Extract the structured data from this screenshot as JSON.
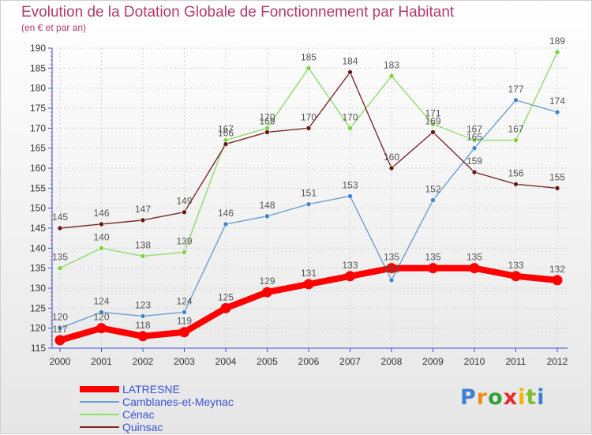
{
  "header": {
    "title": "Evolution de la Dotation Globale de Fonctionnement par Habitant",
    "subtitle": "(en € et par an)"
  },
  "logo": {
    "text": "Proxiti"
  },
  "colors": {
    "title": "#b13a6d",
    "axis": "#3a52d6",
    "grid": "#d2d2d2",
    "label": "#555555"
  },
  "chart_data": {
    "type": "line",
    "title": "Evolution de la Dotation Globale de Fonctionnement par Habitant",
    "subtitle": "(en € et par an)",
    "xlabel": "",
    "ylabel": "",
    "x": [
      "2000",
      "2001",
      "2002",
      "2003",
      "2004",
      "2005",
      "2006",
      "2007",
      "2008",
      "2009",
      "2010",
      "2011",
      "2012"
    ],
    "ylim": [
      115,
      190
    ],
    "yticks": [
      115,
      120,
      125,
      130,
      135,
      140,
      145,
      150,
      155,
      160,
      165,
      170,
      175,
      180,
      185,
      190
    ],
    "grid": true,
    "legend_position": "bottom-left",
    "series": [
      {
        "name": "LATRESNE",
        "color": "#ff0000",
        "marker": "#ff0000",
        "width": "thick",
        "values": [
          117,
          120,
          118,
          119,
          125,
          129,
          131,
          133,
          135,
          135,
          135,
          133,
          132
        ]
      },
      {
        "name": "Camblanes-et-Meynac",
        "color": "#6a9fd0",
        "marker": "#3c86cc",
        "width": "thin",
        "values": [
          120,
          124,
          123,
          124,
          146,
          148,
          151,
          153,
          132,
          152,
          165,
          177,
          174
        ]
      },
      {
        "name": "Cénac",
        "color": "#90dc6c",
        "marker": "#7ad23e",
        "width": "thin",
        "values": [
          135,
          140,
          138,
          139,
          167,
          170,
          185,
          170,
          183,
          171,
          167,
          167,
          189
        ]
      },
      {
        "name": "Quinsac",
        "color": "#7a2a2a",
        "marker": "#6a1616",
        "width": "thin",
        "values": [
          145,
          146,
          147,
          149,
          166,
          169,
          170,
          184,
          160,
          169,
          159,
          156,
          155
        ]
      }
    ]
  }
}
